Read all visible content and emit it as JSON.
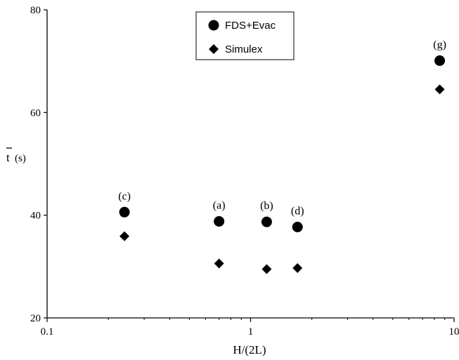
{
  "chart_data": {
    "type": "scatter",
    "xscale": "log",
    "xlim": [
      0.1,
      10
    ],
    "ylim": [
      20,
      80
    ],
    "xticks": [
      {
        "value": 0.1,
        "label": "0.1"
      },
      {
        "value": 1,
        "label": "1"
      },
      {
        "value": 10,
        "label": "10"
      }
    ],
    "yticks": [
      {
        "value": 20,
        "label": "20"
      },
      {
        "value": 40,
        "label": "40"
      },
      {
        "value": 60,
        "label": "60"
      },
      {
        "value": 80,
        "label": "80"
      }
    ],
    "xlabel": "H/(2L)",
    "ylabel": "t",
    "ylabel_unit": "(s)",
    "grid": false,
    "legend_position": "top-center",
    "series": [
      {
        "name": "FDS+Evac",
        "marker": "circle",
        "color": "#000000",
        "points": [
          {
            "x": 0.24,
            "y": 40.6,
            "label": "(c)"
          },
          {
            "x": 0.7,
            "y": 38.8,
            "label": "(a)"
          },
          {
            "x": 1.2,
            "y": 38.7,
            "label": "(b)"
          },
          {
            "x": 1.7,
            "y": 37.7,
            "label": "(d)"
          },
          {
            "x": 8.5,
            "y": 70.1,
            "label": "(g)"
          }
        ]
      },
      {
        "name": "Simulex",
        "marker": "diamond",
        "color": "#000000",
        "points": [
          {
            "x": 0.24,
            "y": 35.9
          },
          {
            "x": 0.7,
            "y": 30.6
          },
          {
            "x": 1.2,
            "y": 29.5
          },
          {
            "x": 1.7,
            "y": 29.7
          },
          {
            "x": 8.5,
            "y": 64.5
          }
        ]
      }
    ]
  }
}
